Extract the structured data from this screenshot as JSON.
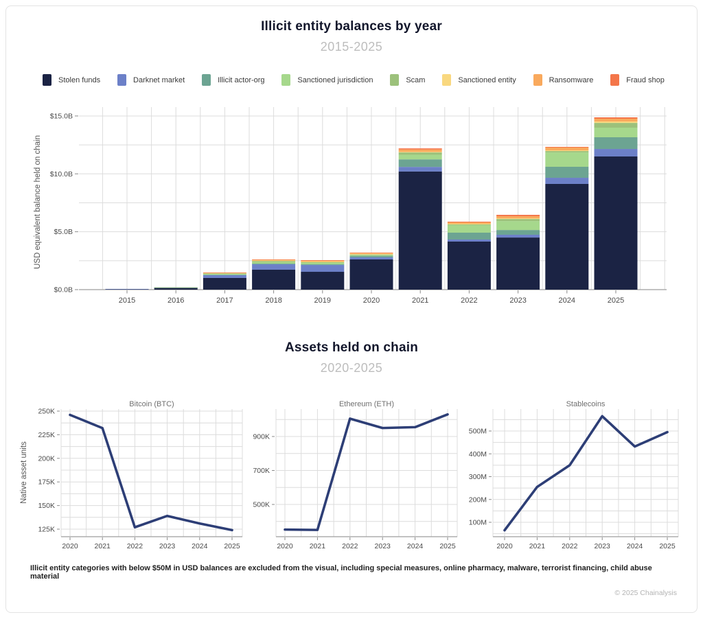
{
  "header": {
    "title": "Illicit entity balances by year",
    "subtitle": "2015-2025"
  },
  "section2": {
    "title": "Assets held on chain",
    "subtitle": "2020-2025",
    "ylabel": "Native asset units"
  },
  "footnote": "Illicit entity categories with below $50M in USD balances are excluded from the visual, including special measures, online pharmacy, malware, terrorist financing, child abuse material",
  "copyright": "© 2025 Chainalysis",
  "chart_data": [
    {
      "type": "bar",
      "stacked": true,
      "title": "Illicit entity balances by year",
      "subtitle": "2015-2025",
      "ylabel": "USD equivalent balance held on chain",
      "xlabel": "",
      "legend_position": "top",
      "categories": [
        "2015",
        "2016",
        "2017",
        "2018",
        "2019",
        "2020",
        "2021",
        "2022",
        "2023",
        "2024",
        "2025"
      ],
      "ylim": [
        0,
        15.5
      ],
      "grid_step": 2.5,
      "yticks": [
        {
          "value": 0,
          "label": "$0.0B"
        },
        {
          "value": 5,
          "label": "$5.0B"
        },
        {
          "value": 10,
          "label": "$10.0B"
        },
        {
          "value": 15,
          "label": "$15.0B"
        }
      ],
      "series": [
        {
          "name": "Stolen funds",
          "color": "#1b2344",
          "values": [
            0.05,
            0.15,
            1.01,
            1.72,
            1.54,
            2.61,
            10.2,
            4.15,
            4.5,
            9.13,
            11.5
          ]
        },
        {
          "name": "Darknet market",
          "color": "#6c80c8",
          "values": [
            0.01,
            0.02,
            0.24,
            0.47,
            0.59,
            0.18,
            0.4,
            0.18,
            0.24,
            0.53,
            0.65
          ]
        },
        {
          "name": "Illicit actor-org",
          "color": "#6ca492",
          "values": [
            0.0,
            0.01,
            0.03,
            0.06,
            0.06,
            0.12,
            0.65,
            0.59,
            0.41,
            0.95,
            1.01
          ]
        },
        {
          "name": "Sanctioned jurisdiction",
          "color": "#a6d88c",
          "values": [
            0.0,
            0.01,
            0.07,
            0.12,
            0.12,
            0.06,
            0.4,
            0.65,
            0.77,
            1.24,
            0.83
          ]
        },
        {
          "name": "Scam",
          "color": "#9cc17b",
          "values": [
            0.0,
            0.01,
            0.06,
            0.1,
            0.06,
            0.06,
            0.2,
            0.06,
            0.18,
            0.12,
            0.41
          ]
        },
        {
          "name": "Sanctioned entity",
          "color": "#f9d87f",
          "values": [
            0.0,
            0.0,
            0.02,
            0.05,
            0.06,
            0.06,
            0.05,
            0.06,
            0.06,
            0.06,
            0.12
          ]
        },
        {
          "name": "Ransomware",
          "color": "#f9a95d",
          "values": [
            0.0,
            0.0,
            0.03,
            0.06,
            0.08,
            0.08,
            0.2,
            0.12,
            0.18,
            0.24,
            0.24
          ]
        },
        {
          "name": "Fraud shop",
          "color": "#f4764a",
          "values": [
            0.0,
            0.0,
            0.02,
            0.03,
            0.04,
            0.03,
            0.1,
            0.06,
            0.12,
            0.06,
            0.12
          ]
        }
      ]
    },
    {
      "type": "line",
      "title": "Bitcoin (BTC)",
      "x": [
        "2020",
        "2021",
        "2022",
        "2023",
        "2024",
        "2025"
      ],
      "values": [
        246000,
        232000,
        127000,
        139000,
        131000,
        124000
      ],
      "ylim": [
        120000,
        253000
      ],
      "grid_step": 12500,
      "yticks": [
        {
          "value": 125000,
          "label": "125K"
        },
        {
          "value": 150000,
          "label": "150K"
        },
        {
          "value": 175000,
          "label": "175K"
        },
        {
          "value": 200000,
          "label": "200K"
        },
        {
          "value": 225000,
          "label": "225K"
        },
        {
          "value": 250000,
          "label": "250K"
        }
      ],
      "line_color": "#2d3e76"
    },
    {
      "type": "line",
      "title": "Ethereum (ETH)",
      "x": [
        "2020",
        "2021",
        "2022",
        "2023",
        "2024",
        "2025"
      ],
      "values": [
        352000,
        350000,
        1005000,
        950000,
        955000,
        1030000
      ],
      "ylim": [
        310000,
        1053000
      ],
      "grid_step": 100000,
      "yticks": [
        {
          "value": 500000,
          "label": "500K"
        },
        {
          "value": 700000,
          "label": "700K"
        },
        {
          "value": 900000,
          "label": "900K"
        }
      ],
      "line_color": "#2d3e76"
    },
    {
      "type": "line",
      "title": "Stablecoins",
      "x": [
        "2020",
        "2021",
        "2022",
        "2023",
        "2024",
        "2025"
      ],
      "values": [
        65000000,
        255000000,
        350000000,
        565000000,
        432000000,
        495000000
      ],
      "ylim": [
        35000000,
        590000000
      ],
      "grid_step": 50000000,
      "yticks": [
        {
          "value": 100000000,
          "label": "100M"
        },
        {
          "value": 200000000,
          "label": "200M"
        },
        {
          "value": 300000000,
          "label": "300M"
        },
        {
          "value": 400000000,
          "label": "400M"
        },
        {
          "value": 500000000,
          "label": "500M"
        }
      ],
      "line_color": "#2d3e76"
    }
  ]
}
